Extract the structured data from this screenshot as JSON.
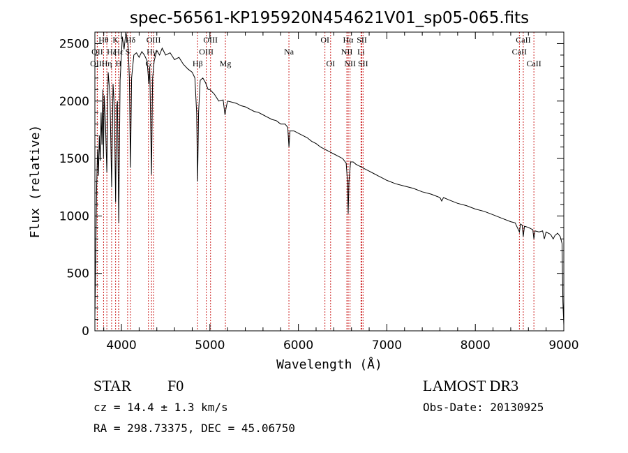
{
  "chart_data": {
    "type": "line",
    "title": "spec-56561-KP195920N454621V01_sp05-065.fits",
    "xlabel": "Wavelength (Å)",
    "ylabel": "Flux (relative)",
    "xlim": [
      3700,
      9000
    ],
    "ylim": [
      0,
      2600
    ],
    "xticks": [
      4000,
      5000,
      6000,
      7000,
      8000,
      9000
    ],
    "yticks": [
      0,
      500,
      1000,
      1500,
      2000,
      2500
    ],
    "series": [
      {
        "name": "spectrum",
        "points": [
          [
            3700,
            120
          ],
          [
            3710,
            700
          ],
          [
            3720,
            1250
          ],
          [
            3730,
            1580
          ],
          [
            3740,
            1350
          ],
          [
            3750,
            1700
          ],
          [
            3760,
            1480
          ],
          [
            3770,
            1900
          ],
          [
            3780,
            1620
          ],
          [
            3790,
            2100
          ],
          [
            3797,
            1500
          ],
          [
            3805,
            2050
          ],
          [
            3820,
            1800
          ],
          [
            3835,
            1380
          ],
          [
            3850,
            2250
          ],
          [
            3870,
            2050
          ],
          [
            3889,
            1250
          ],
          [
            3905,
            2150
          ],
          [
            3920,
            1950
          ],
          [
            3934,
            1120
          ],
          [
            3945,
            1950
          ],
          [
            3955,
            2000
          ],
          [
            3970,
            940
          ],
          [
            3985,
            2180
          ],
          [
            4000,
            2400
          ],
          [
            4010,
            2560
          ],
          [
            4030,
            2450
          ],
          [
            4050,
            2620
          ],
          [
            4075,
            2500
          ],
          [
            4090,
            2200
          ],
          [
            4102,
            1420
          ],
          [
            4115,
            2200
          ],
          [
            4140,
            2400
          ],
          [
            4170,
            2420
          ],
          [
            4200,
            2380
          ],
          [
            4230,
            2430
          ],
          [
            4260,
            2400
          ],
          [
            4290,
            2350
          ],
          [
            4310,
            2150
          ],
          [
            4320,
            2300
          ],
          [
            4340,
            1360
          ],
          [
            4352,
            2200
          ],
          [
            4370,
            2350
          ],
          [
            4400,
            2440
          ],
          [
            4430,
            2400
          ],
          [
            4460,
            2460
          ],
          [
            4500,
            2400
          ],
          [
            4550,
            2420
          ],
          [
            4600,
            2360
          ],
          [
            4650,
            2380
          ],
          [
            4700,
            2320
          ],
          [
            4750,
            2280
          ],
          [
            4800,
            2250
          ],
          [
            4830,
            2200
          ],
          [
            4850,
            1900
          ],
          [
            4861,
            1300
          ],
          [
            4872,
            1900
          ],
          [
            4890,
            2180
          ],
          [
            4920,
            2200
          ],
          [
            4950,
            2160
          ],
          [
            4980,
            2100
          ],
          [
            5000,
            2100
          ],
          [
            5050,
            2060
          ],
          [
            5100,
            2000
          ],
          [
            5150,
            2010
          ],
          [
            5170,
            1880
          ],
          [
            5185,
            1950
          ],
          [
            5200,
            2000
          ],
          [
            5250,
            1990
          ],
          [
            5300,
            1980
          ],
          [
            5350,
            1960
          ],
          [
            5400,
            1950
          ],
          [
            5450,
            1930
          ],
          [
            5500,
            1910
          ],
          [
            5550,
            1900
          ],
          [
            5600,
            1880
          ],
          [
            5650,
            1860
          ],
          [
            5700,
            1840
          ],
          [
            5750,
            1830
          ],
          [
            5800,
            1800
          ],
          [
            5850,
            1800
          ],
          [
            5880,
            1770
          ],
          [
            5893,
            1600
          ],
          [
            5905,
            1740
          ],
          [
            5950,
            1740
          ],
          [
            6000,
            1720
          ],
          [
            6050,
            1700
          ],
          [
            6100,
            1680
          ],
          [
            6150,
            1650
          ],
          [
            6200,
            1630
          ],
          [
            6250,
            1600
          ],
          [
            6300,
            1580
          ],
          [
            6350,
            1560
          ],
          [
            6400,
            1540
          ],
          [
            6450,
            1520
          ],
          [
            6500,
            1500
          ],
          [
            6540,
            1460
          ],
          [
            6555,
            1300
          ],
          [
            6563,
            1020
          ],
          [
            6572,
            1300
          ],
          [
            6590,
            1470
          ],
          [
            6620,
            1470
          ],
          [
            6650,
            1450
          ],
          [
            6700,
            1430
          ],
          [
            6750,
            1410
          ],
          [
            6800,
            1390
          ],
          [
            6850,
            1370
          ],
          [
            6900,
            1350
          ],
          [
            6950,
            1330
          ],
          [
            7000,
            1310
          ],
          [
            7100,
            1280
          ],
          [
            7200,
            1260
          ],
          [
            7300,
            1240
          ],
          [
            7400,
            1210
          ],
          [
            7500,
            1190
          ],
          [
            7600,
            1160
          ],
          [
            7620,
            1130
          ],
          [
            7640,
            1160
          ],
          [
            7700,
            1140
          ],
          [
            7800,
            1110
          ],
          [
            7900,
            1090
          ],
          [
            8000,
            1060
          ],
          [
            8100,
            1040
          ],
          [
            8200,
            1010
          ],
          [
            8300,
            980
          ],
          [
            8400,
            950
          ],
          [
            8450,
            940
          ],
          [
            8498,
            860
          ],
          [
            8510,
            930
          ],
          [
            8530,
            920
          ],
          [
            8542,
            820
          ],
          [
            8555,
            910
          ],
          [
            8600,
            900
          ],
          [
            8650,
            880
          ],
          [
            8662,
            800
          ],
          [
            8675,
            870
          ],
          [
            8720,
            860
          ],
          [
            8760,
            870
          ],
          [
            8780,
            800
          ],
          [
            8800,
            860
          ],
          [
            8850,
            840
          ],
          [
            8880,
            800
          ],
          [
            8900,
            830
          ],
          [
            8930,
            850
          ],
          [
            8960,
            820
          ],
          [
            8980,
            760
          ],
          [
            8990,
            250
          ],
          [
            9000,
            50
          ]
        ]
      }
    ],
    "lines": [
      {
        "label": "Hθ",
        "wave": 3798,
        "row": 1
      },
      {
        "label": "OII",
        "wave": 3727,
        "row": 2
      },
      {
        "label": "OIII",
        "wave": 3727,
        "row": 3
      },
      {
        "label": "K",
        "wave": 3934,
        "row": 1
      },
      {
        "label": "Hε",
        "wave": 3970,
        "row": 2
      },
      {
        "label": "Hη",
        "wave": 3835,
        "row": 3
      },
      {
        "label": "Hζ",
        "wave": 3889,
        "row": 2
      },
      {
        "label": "H",
        "wave": 3968,
        "row": 3
      },
      {
        "label": "Hδ",
        "wave": 4102,
        "row": 1
      },
      {
        "label": "S",
        "wave": 4070,
        "row": 2
      },
      {
        "label": "OIII",
        "wave": 4363,
        "row": 1
      },
      {
        "label": "Hγ",
        "wave": 4340,
        "row": 2
      },
      {
        "label": "G",
        "wave": 4305,
        "row": 3
      },
      {
        "label": "OIII",
        "wave": 5007,
        "row": 1
      },
      {
        "label": "OIII",
        "wave": 4959,
        "row": 2
      },
      {
        "label": "Hβ",
        "wave": 4861,
        "row": 3
      },
      {
        "label": "Mg",
        "wave": 5175,
        "row": 3
      },
      {
        "label": "Na",
        "wave": 5893,
        "row": 2
      },
      {
        "label": "OI",
        "wave": 6300,
        "row": 1
      },
      {
        "label": "OI",
        "wave": 6364,
        "row": 3
      },
      {
        "label": "Hα",
        "wave": 6563,
        "row": 1
      },
      {
        "label": "SII",
        "wave": 6717,
        "row": 1
      },
      {
        "label": "NII",
        "wave": 6548,
        "row": 2
      },
      {
        "label": "Li",
        "wave": 6708,
        "row": 2
      },
      {
        "label": "NII",
        "wave": 6584,
        "row": 3
      },
      {
        "label": "SII",
        "wave": 6731,
        "row": 3
      },
      {
        "label": "CaII",
        "wave": 8542,
        "row": 1
      },
      {
        "label": "CaII",
        "wave": 8498,
        "row": 2
      },
      {
        "label": "CaII",
        "wave": 8662,
        "row": 3
      }
    ]
  },
  "info": {
    "class": "STAR",
    "subclass": "F0",
    "survey": "LAMOST DR3",
    "cz": "cz = 14.4 ± 1.3 km/s",
    "obs_date": "Obs-Date: 20130925",
    "radec": "RA = 298.73375, DEC =  45.06750"
  }
}
